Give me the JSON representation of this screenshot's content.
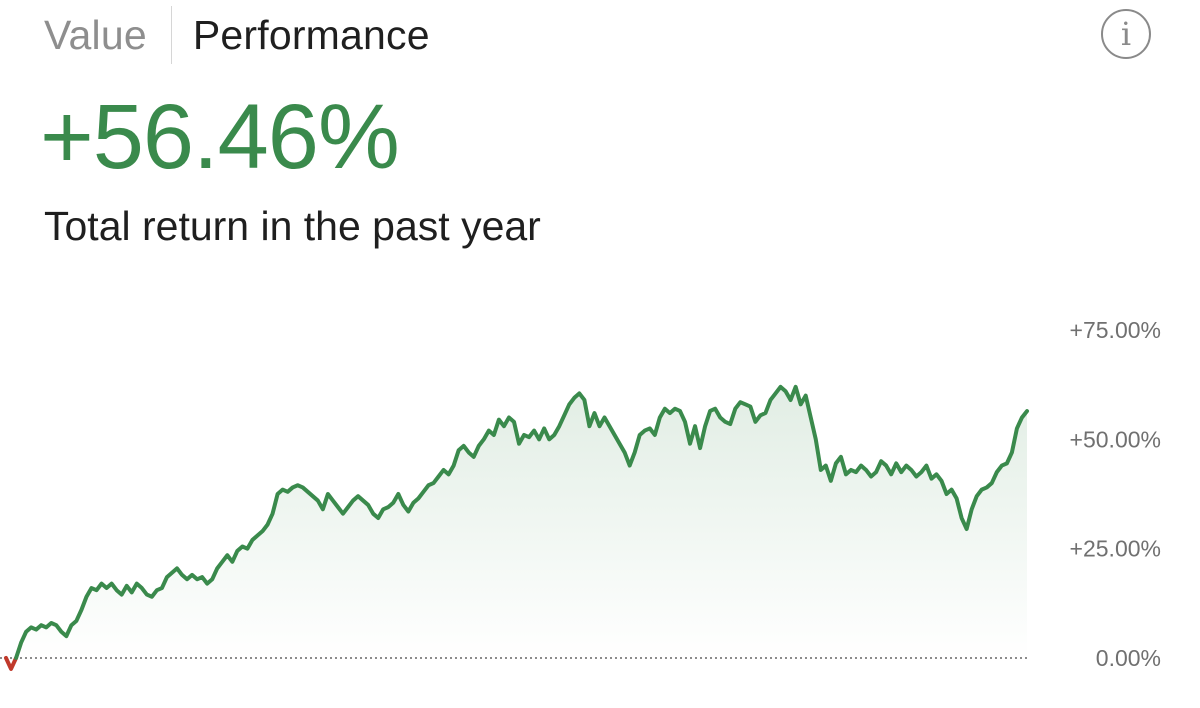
{
  "tabs": {
    "value_label": "Value",
    "performance_label": "Performance",
    "active": "Performance"
  },
  "info_icon": {
    "glyph": "i",
    "icon": "info-circle-icon"
  },
  "summary": {
    "total_return": "+56.46%",
    "caption": "Total return in the past year"
  },
  "colors": {
    "positive": "#3a8a4c",
    "negative": "#c0392b",
    "baseline": "#8c8c8c",
    "axis_text": "#707070"
  },
  "chart_data": {
    "type": "area",
    "title": "",
    "xlabel": "",
    "ylabel": "",
    "ylim": [
      -3,
      80
    ],
    "y_ticks": [
      {
        "value": 75,
        "label": "+75.00%"
      },
      {
        "value": 50,
        "label": "+50.00%"
      },
      {
        "value": 25,
        "label": "+25.00%"
      },
      {
        "value": 0,
        "label": "0.00%"
      }
    ],
    "baseline_value": 0,
    "grid": false,
    "legend": "none",
    "series": [
      {
        "values": [
          0.0,
          -2.5,
          0.0,
          3.5,
          6.0,
          7.0,
          6.5,
          7.5,
          7.0,
          8.0,
          7.5,
          6.0,
          5.0,
          7.5,
          8.5,
          11.0,
          14.0,
          16.0,
          15.5,
          17.0,
          16.0,
          17.0,
          15.5,
          14.5,
          16.5,
          15.0,
          17.0,
          16.0,
          14.5,
          14.0,
          15.5,
          16.0,
          18.5,
          19.5,
          20.5,
          19.0,
          18.0,
          19.0,
          18.0,
          18.5,
          17.0,
          18.0,
          20.5,
          22.0,
          23.5,
          22.0,
          24.5,
          25.5,
          25.0,
          27.0,
          28.0,
          29.0,
          30.5,
          33.0,
          37.5,
          38.5,
          38.0,
          39.0,
          39.5,
          39.0,
          38.0,
          37.0,
          36.0,
          34.0,
          37.5,
          36.0,
          34.5,
          33.0,
          34.5,
          36.0,
          37.0,
          36.0,
          35.0,
          33.0,
          32.0,
          34.0,
          34.5,
          35.5,
          37.5,
          35.0,
          33.5,
          35.5,
          36.5,
          38.0,
          39.5,
          40.0,
          41.5,
          43.0,
          42.0,
          44.0,
          47.5,
          48.5,
          47.0,
          46.0,
          48.5,
          50.0,
          52.0,
          51.0,
          54.5,
          53.0,
          55.0,
          54.0,
          49.0,
          51.0,
          50.5,
          52.0,
          50.0,
          52.5,
          50.0,
          51.0,
          53.0,
          55.5,
          58.0,
          59.5,
          60.5,
          59.0,
          53.0,
          56.0,
          53.0,
          55.0,
          53.0,
          51.0,
          49.0,
          47.0,
          44.0,
          47.0,
          51.0,
          52.0,
          52.5,
          51.0,
          55.0,
          57.0,
          56.0,
          57.0,
          56.5,
          54.0,
          49.0,
          53.0,
          48.0,
          53.0,
          56.5,
          57.0,
          55.0,
          54.0,
          53.5,
          57.0,
          58.5,
          58.0,
          57.5,
          54.0,
          55.5,
          56.0,
          59.0,
          60.5,
          62.0,
          61.0,
          59.0,
          62.0,
          58.0,
          60.0,
          55.0,
          50.0,
          43.0,
          44.0,
          40.5,
          44.5,
          46.0,
          42.0,
          43.0,
          42.5,
          44.0,
          43.0,
          41.5,
          42.5,
          45.0,
          44.0,
          42.0,
          44.5,
          42.5,
          44.0,
          43.0,
          41.5,
          42.5,
          44.0,
          41.0,
          42.0,
          40.5,
          37.5,
          38.5,
          36.5,
          32.0,
          29.5,
          34.0,
          37.0,
          38.5,
          39.0,
          40.0,
          42.5,
          44.0,
          44.5,
          47.0,
          52.5,
          55.0,
          56.46
        ]
      }
    ]
  }
}
